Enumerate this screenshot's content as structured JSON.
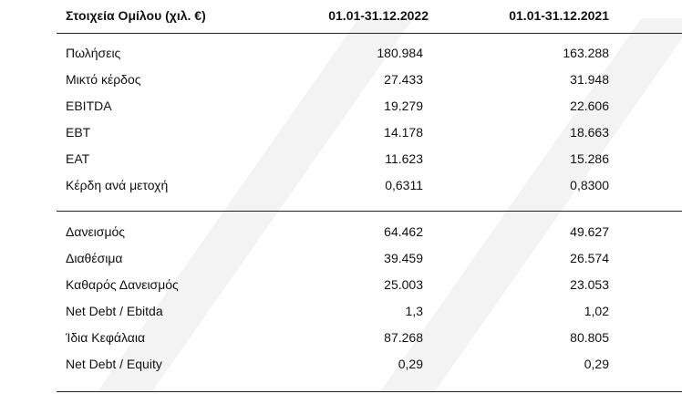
{
  "header": {
    "label": "Στοιχεία Ομίλου (χιλ. €)",
    "col1": "01.01-31.12.2022",
    "col2": "01.01-31.12.2021"
  },
  "sections": [
    {
      "rows": [
        [
          "Πωλήσεις",
          "180.984",
          "163.288"
        ],
        [
          "Μικτό κέρδος",
          "27.433",
          "31.948"
        ],
        [
          "EBITDA",
          "19.279",
          "22.606"
        ],
        [
          "EBT",
          "14.178",
          "18.663"
        ],
        [
          "EAT",
          "11.623",
          "15.286"
        ],
        [
          "Κέρδη ανά μετοχή",
          "0,6311",
          "0,8300"
        ]
      ]
    },
    {
      "rows": [
        [
          "Δανεισμός",
          "64.462",
          "49.627"
        ],
        [
          "Διαθέσιμα",
          "39.459",
          "26.574"
        ],
        [
          "Καθαρός Δανεισμός",
          "25.003",
          "23.053"
        ],
        [
          "Net Debt / Ebitda",
          "1,3",
          "1,02"
        ],
        [
          "Ίδια Κεφάλαια",
          "87.268",
          "80.805"
        ],
        [
          "Net Debt / Equity",
          "0,29",
          "0,29"
        ]
      ]
    }
  ]
}
